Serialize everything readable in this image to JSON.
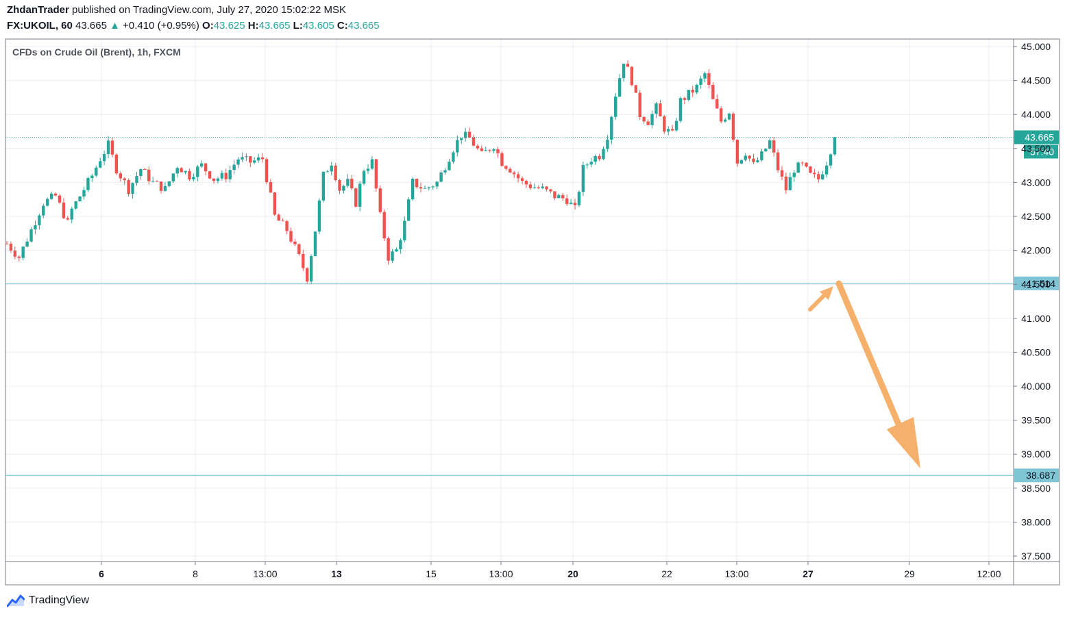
{
  "header": {
    "author": "ZhdanTrader",
    "published_text": "published on TradingView.com, July 27, 2020 15:02:22 MSK",
    "symbol": "FX:UKOIL, 60",
    "last": "43.665",
    "change_arrow": "▲",
    "change": "+0.410 (+0.95%)",
    "o_label": "O:",
    "o_value": "43.625",
    "h_label": "H:",
    "h_value": "43.665",
    "l_label": "L:",
    "l_value": "43.605",
    "c_label": "C:",
    "c_value": "43.665"
  },
  "footer": {
    "brand": "TradingView",
    "logo_icon": "tradingview-logo-icon"
  },
  "colors": {
    "up": "#26a69a",
    "down": "#ef5350",
    "grid": "#e9ecf0",
    "price_line": "#26a69a",
    "level_line": "#7fc5d6",
    "level_label_bg": "#7fc5d6",
    "arrow": "#f5b06c"
  },
  "chart_data": {
    "type": "candlestick",
    "title": "CFDs on Crude Oil (Brent), 1h, FXCM",
    "y_ticks": [
      "45.000",
      "44.500",
      "44.000",
      "43.500",
      "43.000",
      "42.500",
      "42.000",
      "41.500",
      "41.000",
      "40.500",
      "40.000",
      "39.500",
      "39.000",
      "38.500",
      "38.000",
      "37.500"
    ],
    "ylim": [
      37.5,
      45.0
    ],
    "x_ticks": [
      {
        "label": "6",
        "bold": true
      },
      {
        "label": "8",
        "bold": false
      },
      {
        "label": "13:00",
        "bold": false
      },
      {
        "label": "13",
        "bold": true
      },
      {
        "label": "15",
        "bold": false
      },
      {
        "label": "13:00",
        "bold": false
      },
      {
        "label": "20",
        "bold": true
      },
      {
        "label": "22",
        "bold": false
      },
      {
        "label": "13:00",
        "bold": false
      },
      {
        "label": "27",
        "bold": true
      },
      {
        "label": "29",
        "bold": false
      },
      {
        "label": "12:00",
        "bold": false
      }
    ],
    "last_price": {
      "value": 43.665,
      "label": "43.665",
      "countdown": "57:40"
    },
    "horizontal_levels": [
      {
        "value": 41.514,
        "label": "41.514"
      },
      {
        "value": 38.687,
        "label": "38.687"
      }
    ],
    "price_path": [
      [
        0,
        42.1
      ],
      [
        3,
        41.9
      ],
      [
        6,
        42.3
      ],
      [
        9,
        42.7
      ],
      [
        12,
        42.8
      ],
      [
        15,
        42.4
      ],
      [
        16,
        42.6
      ],
      [
        21,
        43.1
      ],
      [
        23,
        43.35
      ],
      [
        25,
        43.55
      ],
      [
        27,
        43.2
      ],
      [
        30,
        42.9
      ],
      [
        33,
        43.2
      ],
      [
        36,
        43.0
      ],
      [
        39,
        42.9
      ],
      [
        42,
        43.25
      ],
      [
        45,
        43.1
      ],
      [
        48,
        43.25
      ],
      [
        51,
        43.05
      ],
      [
        54,
        43.1
      ],
      [
        57,
        43.35
      ],
      [
        60,
        43.3
      ],
      [
        63,
        43.35
      ],
      [
        66,
        42.5
      ],
      [
        69,
        42.3
      ],
      [
        72,
        41.9
      ],
      [
        74,
        41.6
      ],
      [
        76,
        42.3
      ],
      [
        78,
        43.1
      ],
      [
        80,
        43.3
      ],
      [
        82,
        42.9
      ],
      [
        84,
        43.0
      ],
      [
        86,
        42.7
      ],
      [
        88,
        43.2
      ],
      [
        90,
        43.3
      ],
      [
        92,
        42.5
      ],
      [
        94,
        41.9
      ],
      [
        96,
        42.0
      ],
      [
        98,
        42.4
      ],
      [
        100,
        43.0
      ],
      [
        103,
        42.9
      ],
      [
        106,
        43.0
      ],
      [
        108,
        43.25
      ],
      [
        110,
        43.5
      ],
      [
        112,
        43.7
      ],
      [
        114,
        43.65
      ],
      [
        117,
        43.4
      ],
      [
        120,
        43.55
      ],
      [
        122,
        43.3
      ],
      [
        124,
        43.2
      ],
      [
        127,
        43.0
      ],
      [
        129,
        42.95
      ],
      [
        132,
        42.9
      ],
      [
        135,
        42.8
      ],
      [
        138,
        42.75
      ],
      [
        140,
        42.6
      ],
      [
        142,
        43.2
      ],
      [
        144,
        43.35
      ],
      [
        146,
        43.4
      ],
      [
        148,
        43.7
      ],
      [
        150,
        44.3
      ],
      [
        152,
        44.8
      ],
      [
        154,
        44.5
      ],
      [
        156,
        44.0
      ],
      [
        158,
        43.9
      ],
      [
        160,
        44.1
      ],
      [
        162,
        43.8
      ],
      [
        164,
        43.7
      ],
      [
        166,
        44.2
      ],
      [
        168,
        44.3
      ],
      [
        170,
        44.4
      ],
      [
        172,
        44.6
      ],
      [
        174,
        44.2
      ],
      [
        176,
        43.9
      ],
      [
        178,
        44.05
      ],
      [
        180,
        43.3
      ],
      [
        182,
        43.45
      ],
      [
        184,
        43.25
      ],
      [
        186,
        43.4
      ],
      [
        188,
        43.6
      ],
      [
        190,
        43.2
      ],
      [
        192,
        42.9
      ],
      [
        194,
        43.2
      ],
      [
        196,
        43.25
      ],
      [
        198,
        43.1
      ],
      [
        200,
        43.05
      ],
      [
        202,
        43.3
      ],
      [
        204,
        43.665
      ]
    ]
  }
}
